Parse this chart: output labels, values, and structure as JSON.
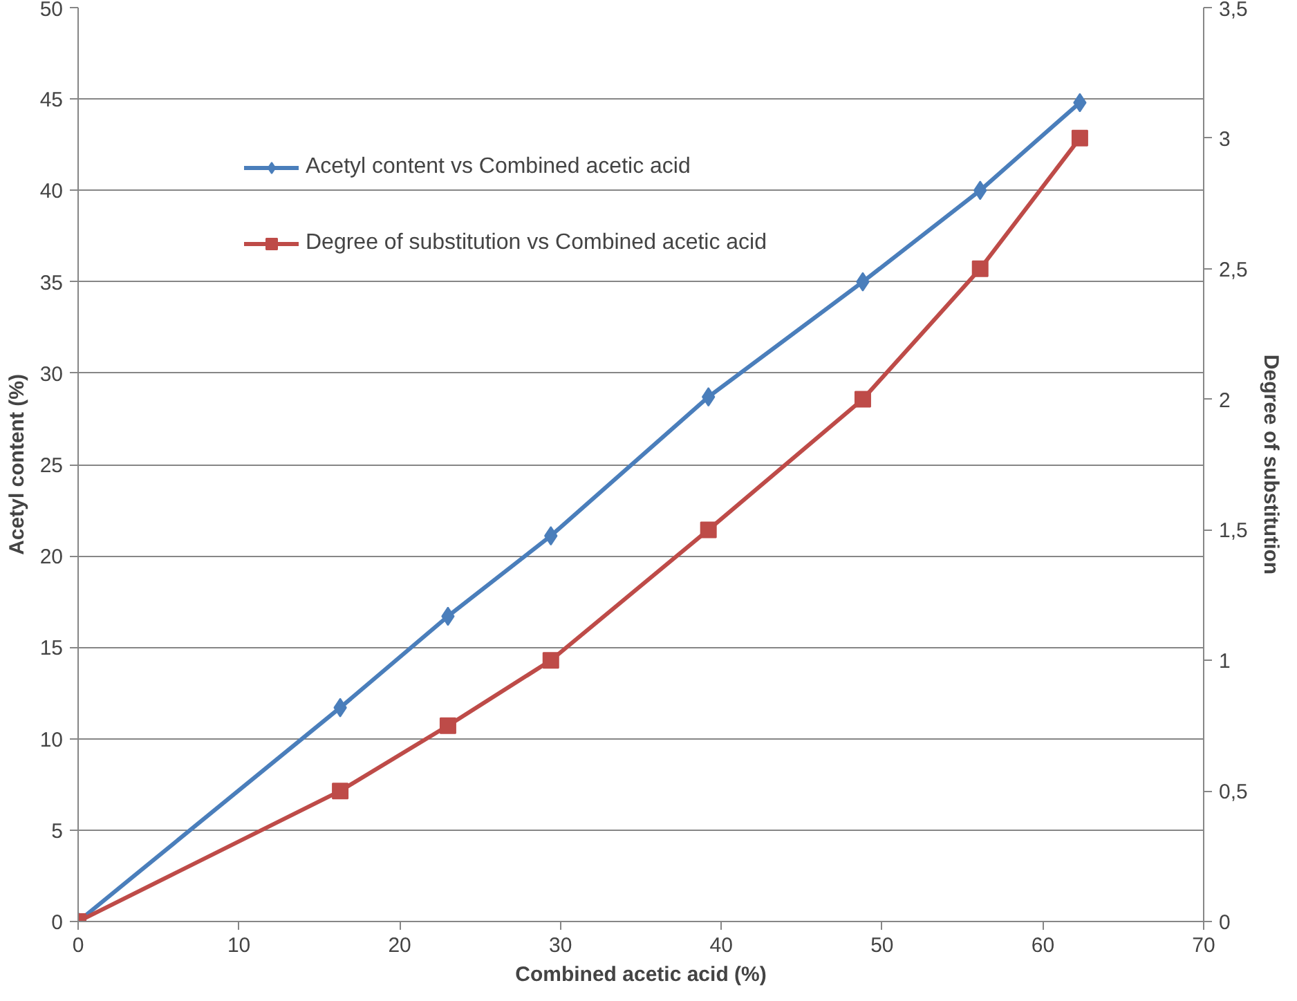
{
  "chart_data": {
    "type": "line",
    "xlabel": "Combined acetic acid (%)",
    "ylabel": "Acetyl content (%)",
    "y2label": "Degree of substitution",
    "x": [
      0,
      16.3,
      23.0,
      29.4,
      39.2,
      48.8,
      56.1,
      62.3
    ],
    "series": [
      {
        "name": "Acetyl content vs Combined acetic acid",
        "color": "#4a7ebb",
        "values": [
          0,
          11.7,
          16.7,
          21.1,
          28.7,
          35.0,
          40.0,
          44.8
        ],
        "marker": "diamond"
      },
      {
        "name": "Degree of substitution vs Combined acetic acid",
        "color": "#be4b48",
        "values": [
          0,
          0.5,
          0.75,
          1.0,
          1.5,
          2.0,
          2.5,
          3.0
        ],
        "marker": "square",
        "axis": "y2"
      }
    ],
    "xlim": [
      0,
      70
    ],
    "xticks": [
      0,
      10,
      20,
      30,
      40,
      50,
      60,
      70
    ],
    "ylim": [
      0,
      50
    ],
    "yticks": [
      0,
      5,
      10,
      15,
      20,
      25,
      30,
      35,
      40,
      45,
      50
    ],
    "y2lim": [
      0,
      3.5
    ],
    "y2ticks": [
      0,
      {
        "value": 0.5,
        "label": "0,5"
      },
      1,
      {
        "value": 1.5,
        "label": "1,5"
      },
      2,
      {
        "value": 2.5,
        "label": "2,5"
      },
      3,
      {
        "value": 3.5,
        "label": "3,5"
      }
    ],
    "grid": "y",
    "legend": "top",
    "line_style": "solid"
  }
}
